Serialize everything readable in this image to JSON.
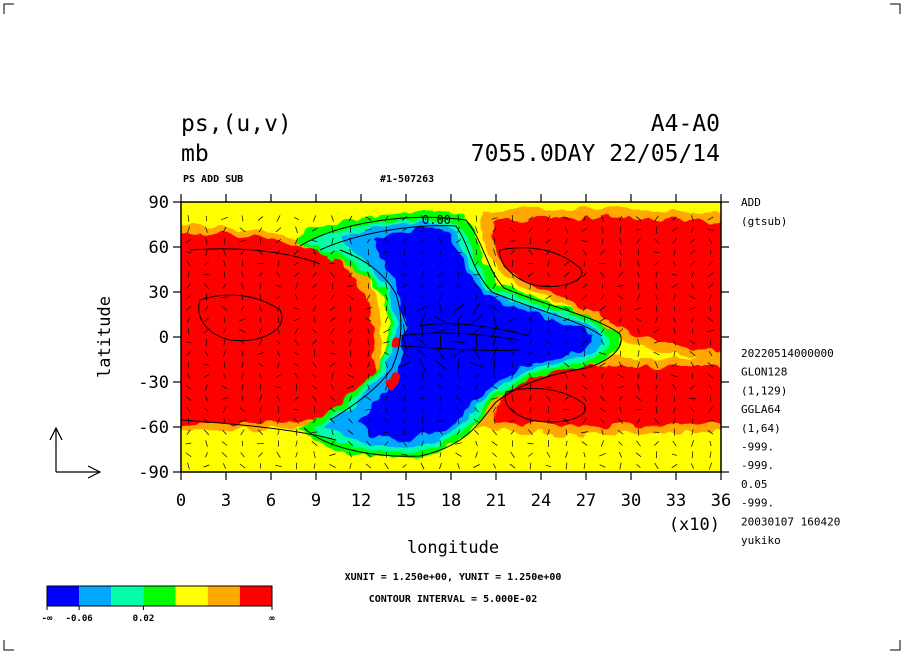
{
  "header": {
    "var_title": "ps,(u,v)",
    "var_unit": "mb",
    "experiment": "A4-A0",
    "date": "7055.0DAY 22/05/14",
    "subtitle": "PS ADD SUB",
    "file_id": "#1-507263"
  },
  "side_info": {
    "lines_top": [
      "ADD",
      "(gtsub)"
    ],
    "lines": [
      "20220514000000",
      "GLON128",
      "(1,129)",
      "GGLA64",
      "(1,64)",
      "-999.",
      "-999.",
      "0.05",
      "-999.",
      "20030107 160420",
      "yukiko"
    ]
  },
  "footer": {
    "units_line": "XUNIT = 1.250e+00, YUNIT = 1.250e+00",
    "contour_line": "CONTOUR INTERVAL = 5.000E-02",
    "x_multiplier": "(x10)"
  },
  "contour_label": "0.00",
  "legend": {
    "tick_labels": [
      "-∞",
      "-0.06",
      "0.02",
      "∞"
    ],
    "colors": [
      "#0000ff",
      "#00a8ff",
      "#00ffa8",
      "#00ff00",
      "#ffff00",
      "#ffa800",
      "#ff0000"
    ]
  },
  "chart_data": {
    "type": "heatmap",
    "title": "ps,(u,v)",
    "xlabel": "longitude",
    "ylabel": "latitude",
    "xlim": [
      0,
      36
    ],
    "ylim": [
      -90,
      90
    ],
    "x_ticks": [
      0,
      3,
      6,
      9,
      12,
      15,
      18,
      21,
      24,
      27,
      30,
      33,
      36
    ],
    "y_ticks": [
      90,
      60,
      30,
      0,
      -30,
      -60,
      -90
    ],
    "regions": [
      {
        "name": "blue anomaly core",
        "lon_range": [
          13.5,
          29
        ],
        "lat_range": [
          -75,
          72
        ],
        "color": "#0000ff"
      },
      {
        "name": "red west",
        "lon_range": [
          0,
          13
        ],
        "lat_range": [
          -62,
          70
        ],
        "color": "#ff0000"
      },
      {
        "name": "red northeast",
        "lon_range": [
          20,
          36
        ],
        "lat_range": [
          5,
          75
        ],
        "color": "#ff0000"
      },
      {
        "name": "red southeast",
        "lon_range": [
          21,
          36
        ],
        "lat_range": [
          -63,
          -20
        ],
        "color": "#ff0000"
      },
      {
        "name": "yellow polar band north",
        "lon_range": [
          0,
          36
        ],
        "lat_range": [
          72,
          90
        ],
        "color": "#ffff00"
      },
      {
        "name": "yellow polar band south",
        "lon_range": [
          0,
          36
        ],
        "lat_range": [
          -90,
          -65
        ],
        "color": "#ffff00"
      }
    ]
  }
}
